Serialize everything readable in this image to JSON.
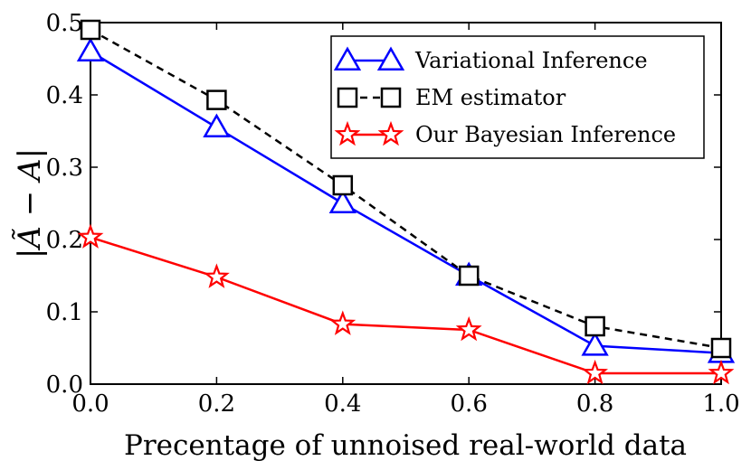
{
  "chart_data": {
    "type": "line",
    "title": "",
    "xlabel": "Precentage of unnoised real-world data",
    "ylabel": "|Ã − A|",
    "xlim": [
      0.0,
      1.0
    ],
    "ylim": [
      0.0,
      0.5
    ],
    "xticks": [
      "0.0",
      "0.2",
      "0.4",
      "0.6",
      "0.8",
      "1.0"
    ],
    "yticks": [
      "0.0",
      "0.1",
      "0.2",
      "0.3",
      "0.4",
      "0.5"
    ],
    "x": [
      0.0,
      0.2,
      0.4,
      0.6,
      0.8,
      1.0
    ],
    "grid": false,
    "legend_position": "top-right",
    "series": [
      {
        "name": "Variational Inference",
        "values": [
          0.46,
          0.355,
          0.25,
          0.15,
          0.053,
          0.043
        ],
        "color": "#0000ff",
        "marker": "triangle",
        "linestyle": "solid"
      },
      {
        "name": "EM estimator",
        "values": [
          0.49,
          0.393,
          0.275,
          0.15,
          0.08,
          0.05
        ],
        "color": "#000000",
        "marker": "square",
        "linestyle": "dashed"
      },
      {
        "name": "Our Bayesian Inference",
        "values": [
          0.203,
          0.148,
          0.083,
          0.075,
          0.015,
          0.015
        ],
        "color": "#ff0000",
        "marker": "star",
        "linestyle": "solid"
      }
    ]
  }
}
